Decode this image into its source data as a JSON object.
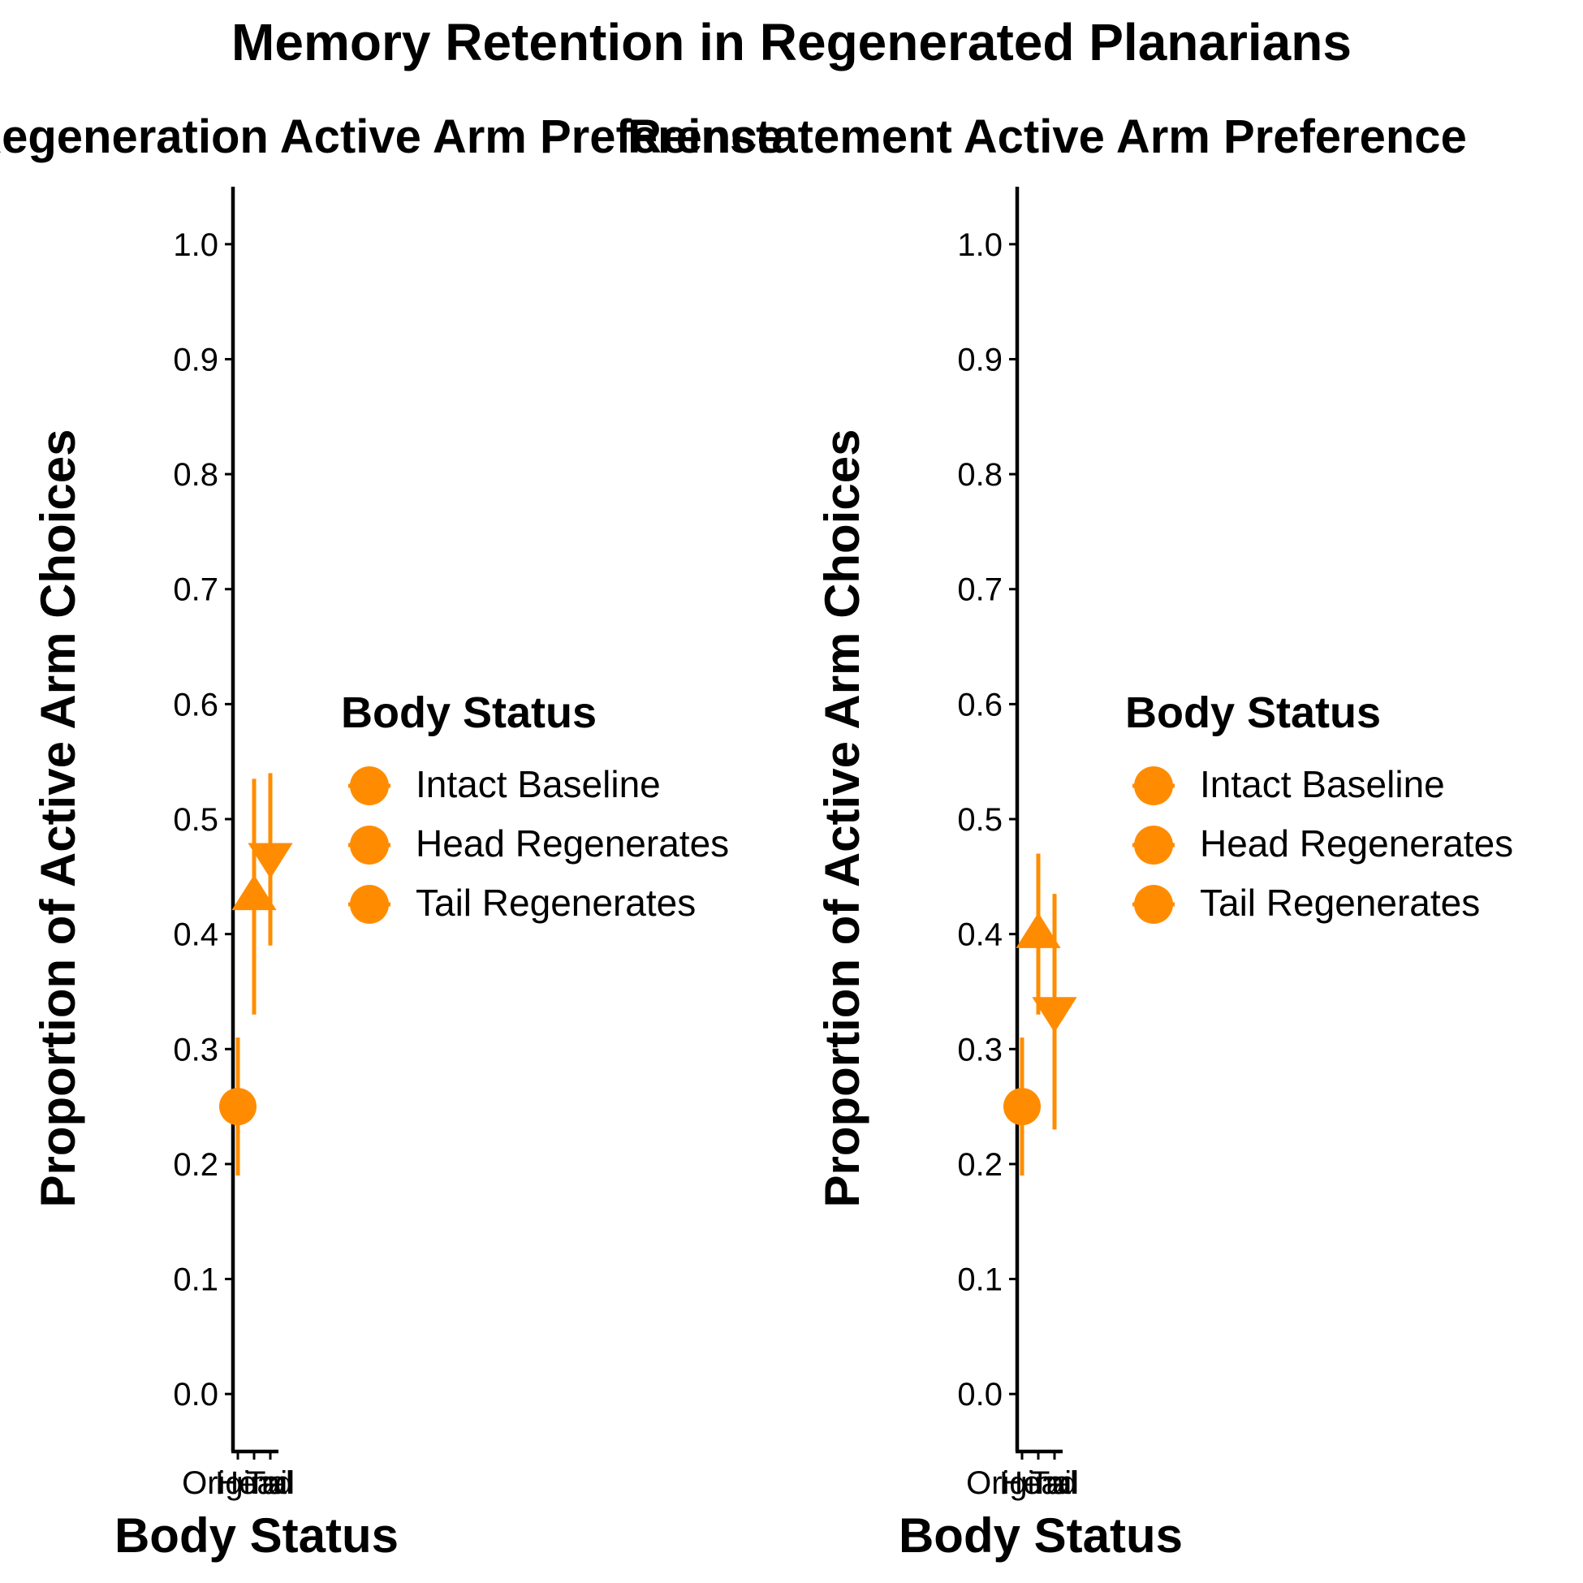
{
  "title": "Memory Retention in Regenerated Planarians",
  "accent_color": "#FF8C00",
  "chart_data": [
    {
      "type": "scatter",
      "title": "Post-Regeneration Active Arm Preference",
      "xlabel": "Body Status",
      "ylabel": "Proportion of Active Arm Choices",
      "categories": [
        "Original",
        "Head",
        "Tail"
      ],
      "ylim": [
        -0.05,
        1.05
      ],
      "yticks": [
        "0.0",
        "0.1",
        "0.2",
        "0.3",
        "0.4",
        "0.5",
        "0.6",
        "0.7",
        "0.8",
        "0.9",
        "1.0"
      ],
      "grid": false,
      "legend": {
        "title": "Body Status",
        "position": "right",
        "entries": [
          "Intact Baseline",
          "Head Regenerates",
          "Tail Regenerates"
        ]
      },
      "series": [
        {
          "name": "Intact Baseline",
          "category": "Original",
          "shape": "circle",
          "value": 0.25,
          "ci": [
            0.19,
            0.31
          ]
        },
        {
          "name": "Head Regenerates",
          "category": "Head",
          "shape": "triangle-up",
          "value": 0.433,
          "ci": [
            0.33,
            0.535
          ]
        },
        {
          "name": "Tail Regenerates",
          "category": "Tail",
          "shape": "triangle-down",
          "value": 0.467,
          "ci": [
            0.39,
            0.54
          ]
        }
      ]
    },
    {
      "type": "scatter",
      "title": "Reinstatement Active Arm Preference",
      "xlabel": "Body Status",
      "ylabel": "Proportion of Active Arm Choices",
      "categories": [
        "Original",
        "Head",
        "Tail"
      ],
      "ylim": [
        -0.05,
        1.05
      ],
      "yticks": [
        "0.0",
        "0.1",
        "0.2",
        "0.3",
        "0.4",
        "0.5",
        "0.6",
        "0.7",
        "0.8",
        "0.9",
        "1.0"
      ],
      "grid": false,
      "legend": {
        "title": "Body Status",
        "position": "right",
        "entries": [
          "Intact Baseline",
          "Head Regenerates",
          "Tail Regenerates"
        ]
      },
      "series": [
        {
          "name": "Intact Baseline",
          "category": "Original",
          "shape": "circle",
          "value": 0.25,
          "ci": [
            0.19,
            0.31
          ]
        },
        {
          "name": "Head Regenerates",
          "category": "Head",
          "shape": "triangle-up",
          "value": 0.4,
          "ci": [
            0.33,
            0.47
          ]
        },
        {
          "name": "Tail Regenerates",
          "category": "Tail",
          "shape": "triangle-down",
          "value": 0.333,
          "ci": [
            0.23,
            0.435
          ]
        }
      ]
    }
  ]
}
